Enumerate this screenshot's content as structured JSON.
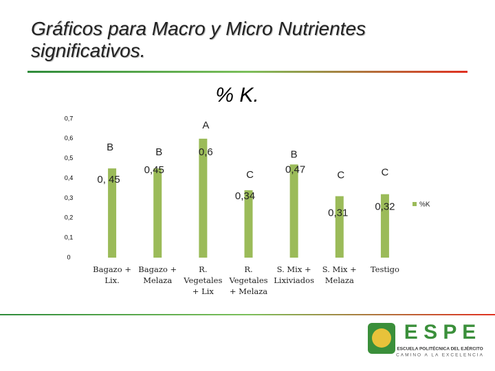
{
  "header": {
    "title": "Gráficos para Macro y Micro Nutrientes significativos."
  },
  "chart_data": {
    "type": "bar",
    "title": "% K.",
    "categories": [
      "Bagazo + Lix.",
      "Bagazo + Melaza",
      "R. Vegetales + Lix",
      "R. Vegetales + Melaza",
      "S. Mix + Lixiviados",
      "S. Mix + Melaza",
      "Testigo"
    ],
    "series": [
      {
        "name": "%K",
        "color": "#9bbb59",
        "values": [
          0.45,
          0.45,
          0.6,
          0.34,
          0.47,
          0.31,
          0.32
        ],
        "value_labels": [
          "0, 45",
          "0,45",
          "0,6",
          "0,34",
          "0,47",
          "0,31",
          "0,32"
        ]
      }
    ],
    "annotations": [
      "B",
      "B",
      "A",
      "C",
      "B",
      "C",
      "C"
    ],
    "ylim": [
      0,
      0.7
    ],
    "yticks": [
      0,
      {
        "value": 0.1,
        "label": "0,1"
      },
      {
        "value": 0.2,
        "label": "0,2"
      },
      {
        "value": 0.3,
        "label": "0,3"
      },
      {
        "value": 0.4,
        "label": "0,4"
      },
      {
        "value": 0.5,
        "label": "0,5"
      },
      {
        "value": 0.6,
        "label": "0,6"
      },
      {
        "value": 0.7,
        "label": "0,7"
      }
    ],
    "grid": false,
    "legend": "right"
  },
  "logo": {
    "name": "E S P E",
    "line1": "ESCUELA POLITÉCNICA DEL EJÉRCITO",
    "line2": "CAMINO A LA EXCELENCIA"
  }
}
